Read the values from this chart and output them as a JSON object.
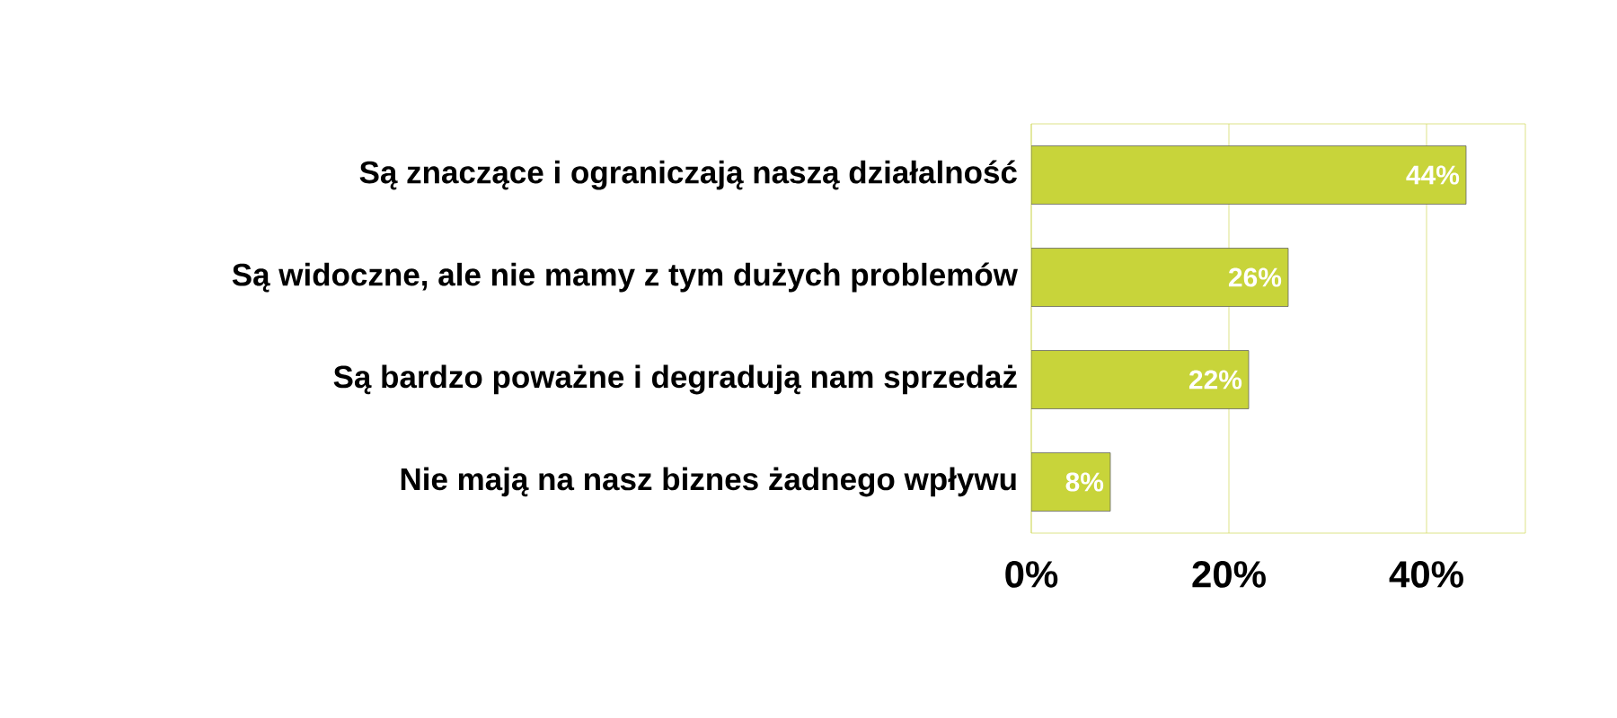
{
  "chart_data": {
    "type": "bar",
    "orientation": "horizontal",
    "categories": [
      "Są znaczące i ograniczają naszą działalność",
      "Są widoczne, ale nie mamy z tym dużych problemów",
      "Są bardzo poważne i degradują nam sprzedaż",
      "Nie mają na nasz biznes żadnego wpływu"
    ],
    "values": [
      44,
      26,
      22,
      8
    ],
    "value_labels": [
      "44%",
      "26%",
      "22%",
      "8%"
    ],
    "color": "#c8d43a",
    "xlim": [
      0,
      50
    ],
    "xticks": [
      {
        "value": 0,
        "label": "0%"
      },
      {
        "value": 20,
        "label": "20%"
      },
      {
        "value": 40,
        "label": "40%"
      }
    ],
    "grid": "x"
  }
}
